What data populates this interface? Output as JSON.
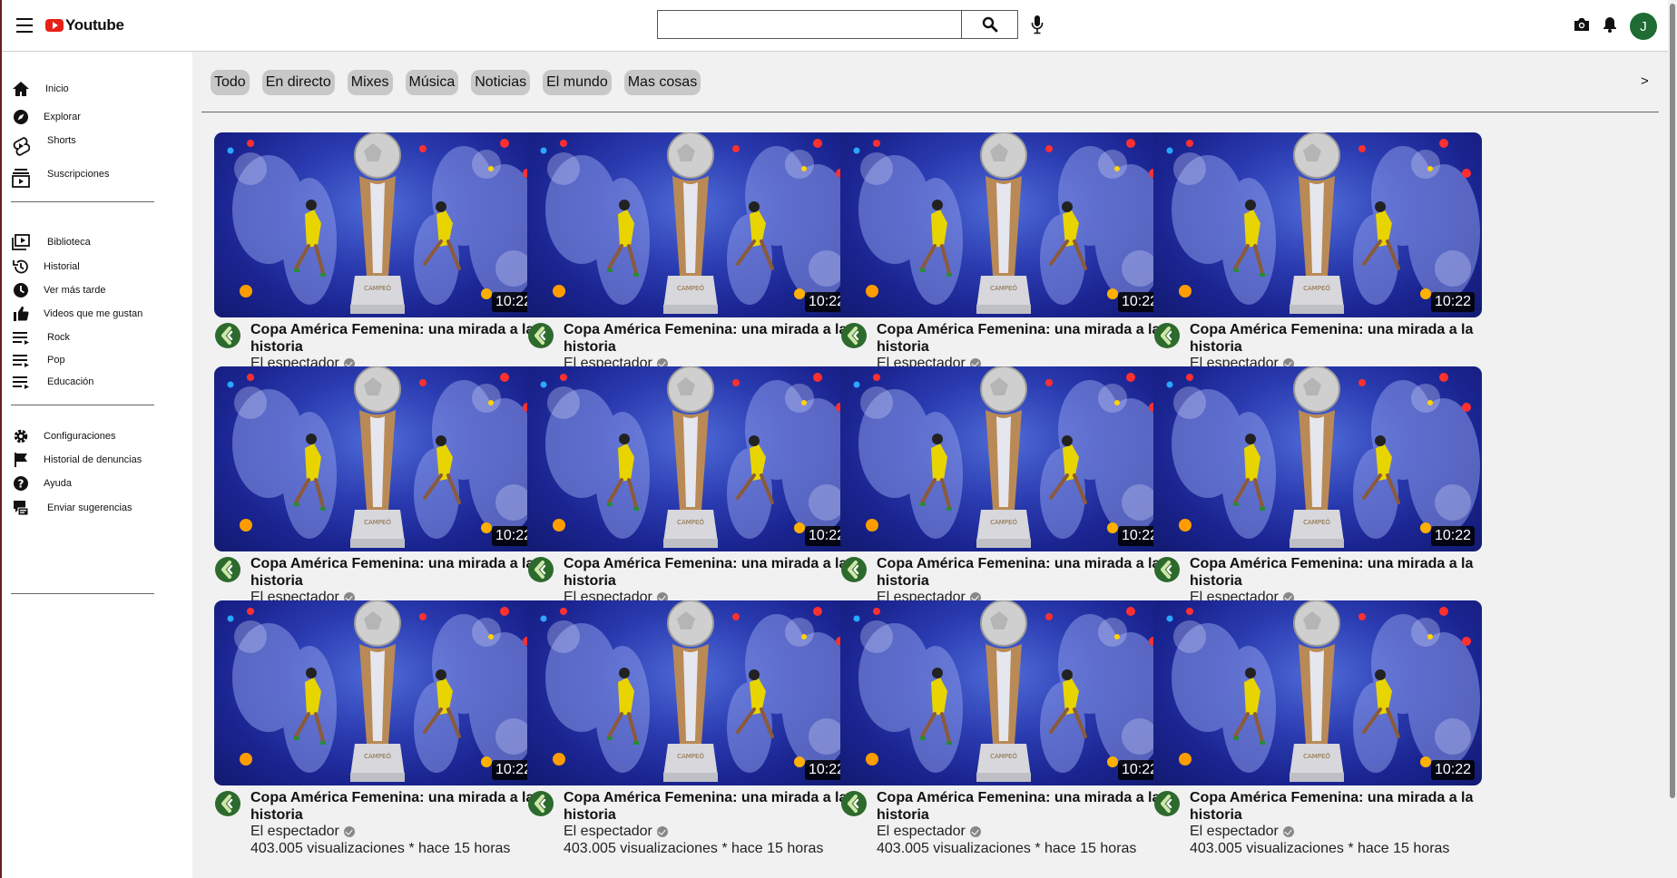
{
  "header": {
    "logo_text": "Youtube",
    "search_placeholder": "",
    "avatar_letter": "J"
  },
  "sidebar": {
    "items": [
      {
        "label": "Inicio",
        "icon": "home-icon"
      },
      {
        "label": "Explorar",
        "icon": "compass-icon"
      },
      {
        "label": "Shorts",
        "icon": "shorts-icon"
      },
      {
        "label": "Suscripciones",
        "icon": "subscriptions-icon"
      },
      {
        "label": "Biblioteca",
        "icon": "library-icon"
      },
      {
        "label": "Historial",
        "icon": "history-icon"
      },
      {
        "label": "Ver más tarde",
        "icon": "clock-icon"
      },
      {
        "label": "Videos que me gustan",
        "icon": "thumbs-up-icon"
      },
      {
        "label": "Rock",
        "icon": "playlist-icon"
      },
      {
        "label": "Pop",
        "icon": "playlist-icon"
      },
      {
        "label": "Educación",
        "icon": "playlist-icon"
      },
      {
        "label": "Configuraciones",
        "icon": "gear-icon"
      },
      {
        "label": "Historial de denuncias",
        "icon": "flag-icon"
      },
      {
        "label": "Ayuda",
        "icon": "help-icon"
      },
      {
        "label": "Enviar sugerencias",
        "icon": "feedback-icon"
      }
    ]
  },
  "chips": [
    "Todo",
    "En directo",
    "Mixes",
    "Música",
    "Noticias",
    "El mundo",
    "Mas cosas"
  ],
  "chips_next": ">",
  "video": {
    "title": "Copa América Femenina: una mirada a la historia",
    "channel": "El espectador",
    "meta": "403.005 visualizaciones * hace 15 horas",
    "duration": "10:22"
  },
  "colors": {
    "accent_red": "#e62117",
    "channel_green": "#2d6a2d",
    "chip_bg": "#c8c8c8",
    "main_bg": "#f1f1f1"
  }
}
